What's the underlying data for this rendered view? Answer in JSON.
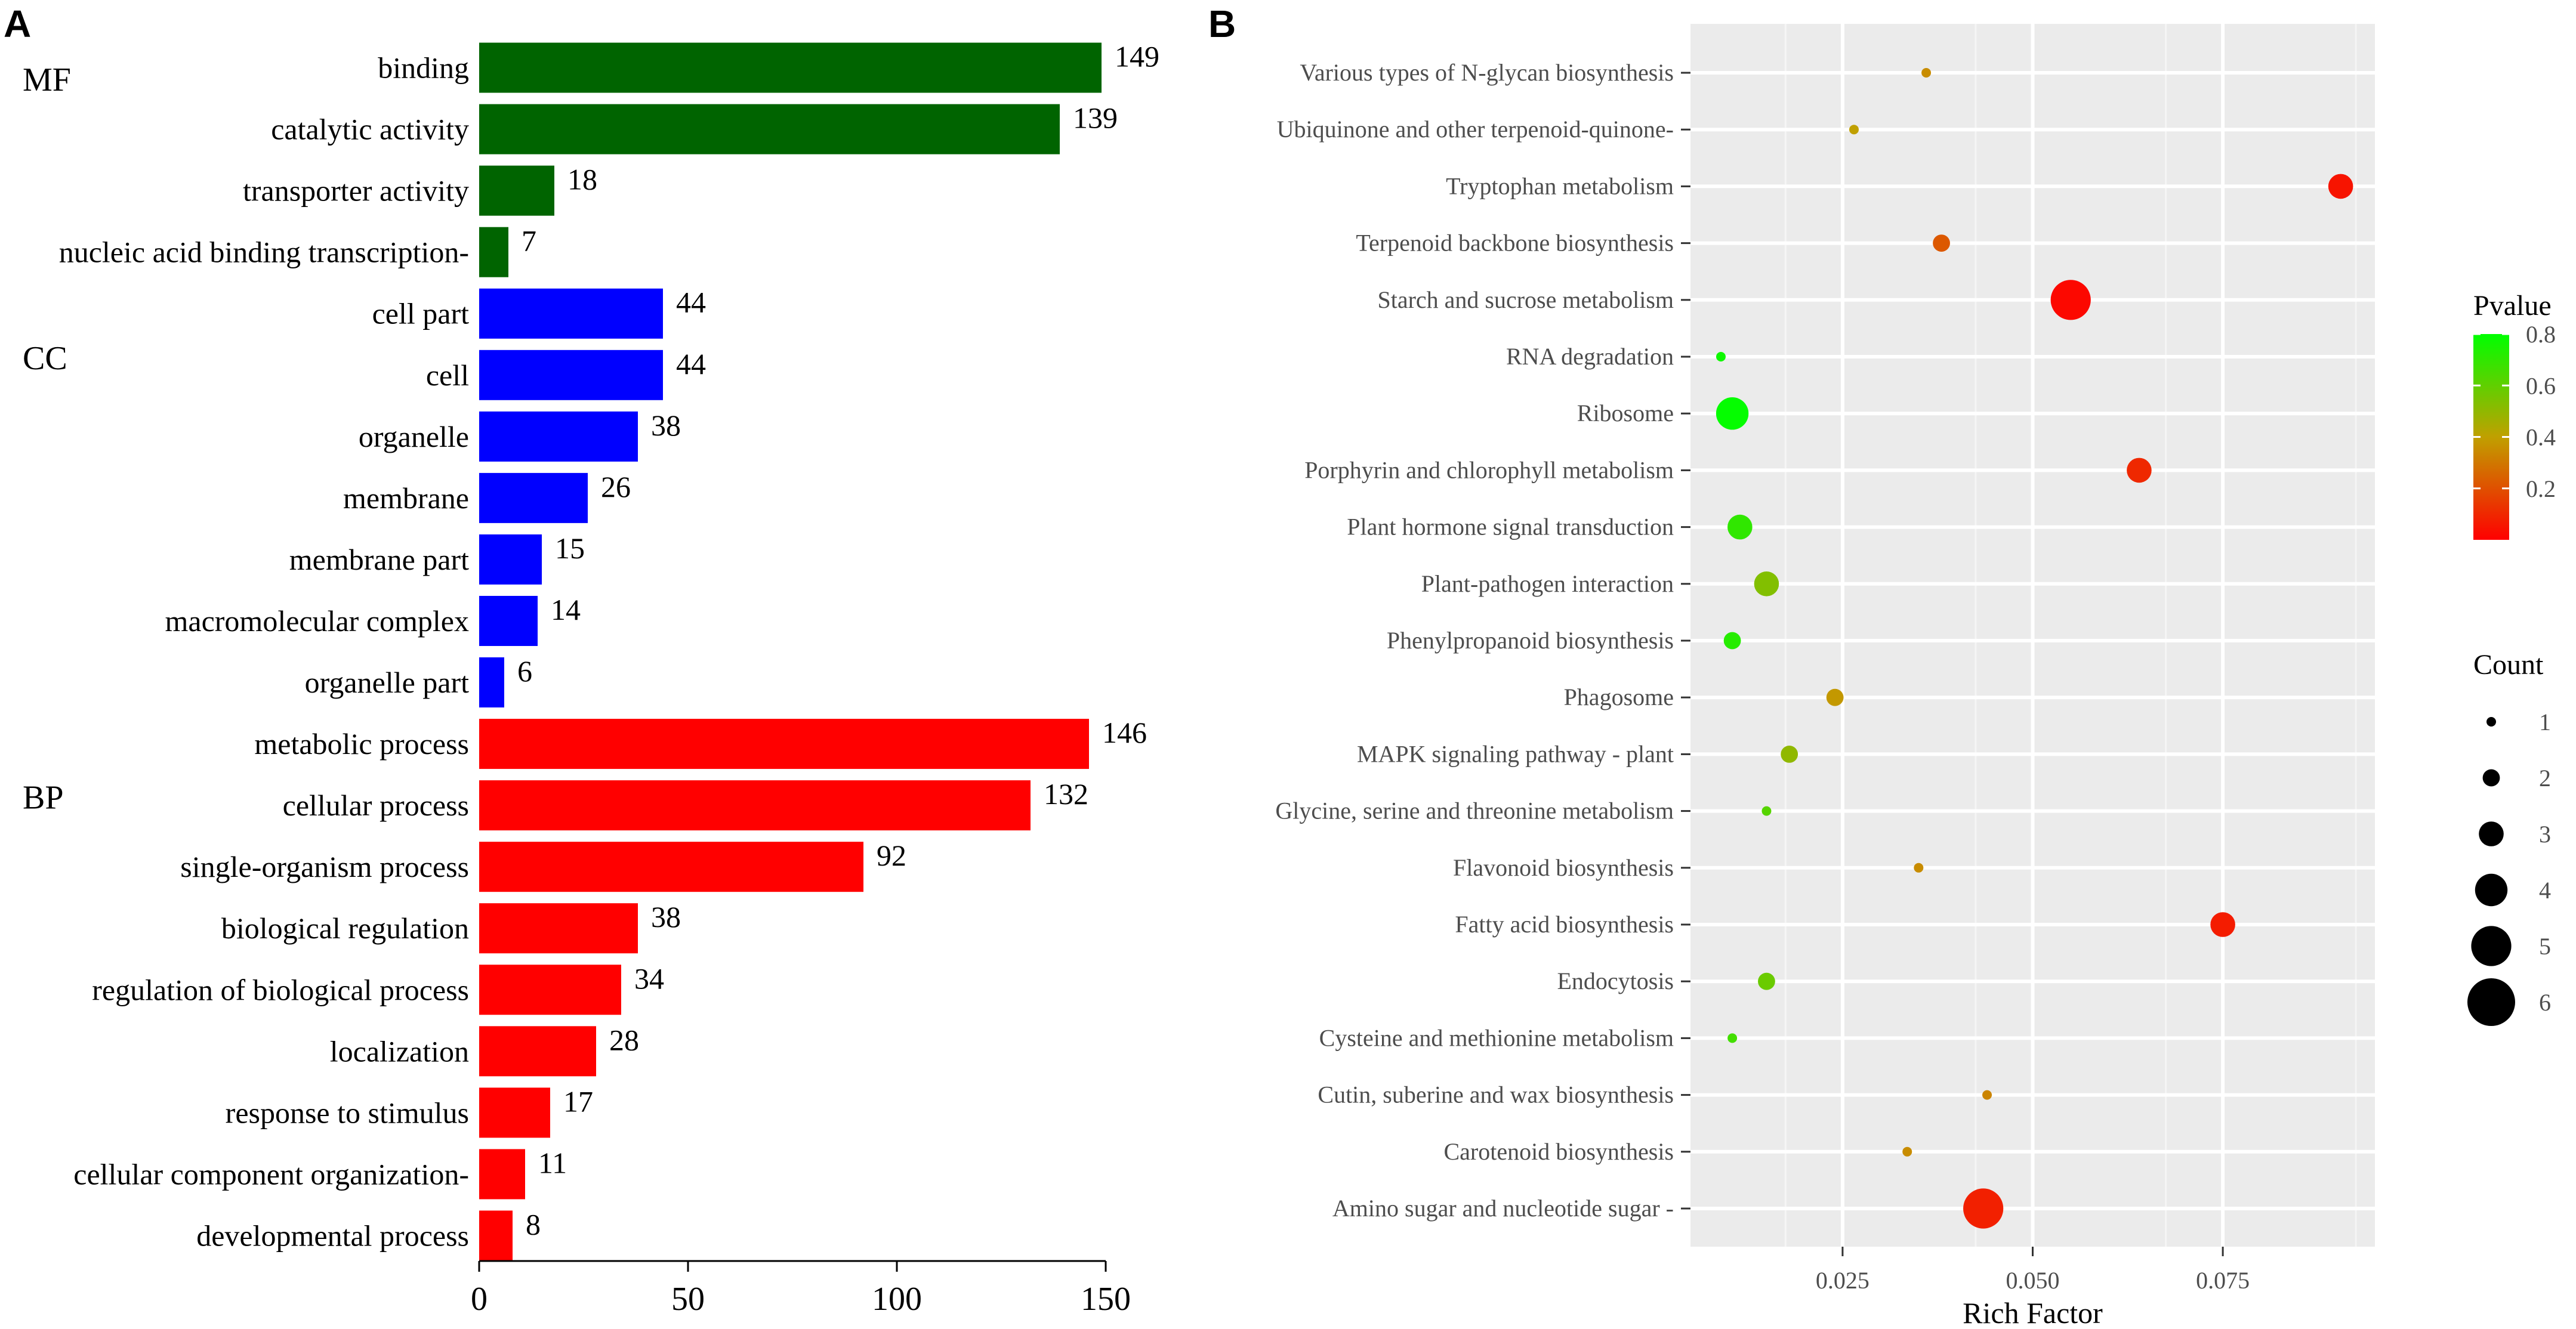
{
  "panel_a": {
    "letter": "A"
  },
  "panel_b": {
    "letter": "B"
  },
  "chart_data": [
    {
      "type": "bar",
      "orientation": "horizontal",
      "title": "",
      "xlabel": "",
      "ylabel": "",
      "xlim": [
        0,
        150
      ],
      "xticks": [
        "0",
        "50",
        "100",
        "150"
      ],
      "grid": false,
      "groups": [
        {
          "name": "MF",
          "color": "#006400",
          "categories": [
            "binding",
            "catalytic activity",
            "transporter activity",
            "nucleic acid binding transcription-"
          ],
          "values": [
            149,
            139,
            18,
            7
          ]
        },
        {
          "name": "CC",
          "color": "#0000ff",
          "categories": [
            "cell part",
            "cell",
            "organelle",
            "membrane",
            "membrane part",
            "macromolecular complex",
            "organelle part"
          ],
          "values": [
            44,
            44,
            38,
            26,
            15,
            14,
            6
          ]
        },
        {
          "name": "BP",
          "color": "#ff0000",
          "categories": [
            "metabolic process",
            "cellular process",
            "single-organism process",
            "biological regulation",
            "regulation of biological process",
            "localization",
            "response to stimulus",
            "cellular component organization-",
            "developmental process"
          ],
          "values": [
            146,
            132,
            92,
            38,
            34,
            28,
            17,
            11,
            8
          ]
        }
      ]
    },
    {
      "type": "scatter",
      "title": "",
      "xlabel": "Rich Factor",
      "ylabel": "",
      "xlim": [
        0.005,
        0.095
      ],
      "xticks": [
        0.025,
        0.05,
        0.075
      ],
      "xtick_labels": [
        "0.025",
        "0.050",
        "0.075"
      ],
      "grid": true,
      "legend_position": "right",
      "color_legend": {
        "title": "Pvalue",
        "range": [
          0.0,
          0.8
        ],
        "ticks": [
          "0.2",
          "0.4",
          "0.6",
          "0.8"
        ],
        "low_color": "#ff0000",
        "high_color": "#00ff00"
      },
      "size_legend": {
        "title": "Count",
        "levels": [
          "1",
          "2",
          "3",
          "4",
          "5",
          "6"
        ]
      },
      "points": [
        {
          "pathway": "Various types of N-glycan biosynthesis",
          "rich_factor": 0.036,
          "count": 1,
          "pvalue": 0.35
        },
        {
          "pathway": "Ubiquinone and other terpenoid-quinone-",
          "rich_factor": 0.0265,
          "count": 1,
          "pvalue": 0.4
        },
        {
          "pathway": "Tryptophan metabolism",
          "rich_factor": 0.0905,
          "count": 3,
          "pvalue": 0.05
        },
        {
          "pathway": "Terpenoid backbone biosynthesis",
          "rich_factor": 0.038,
          "count": 2,
          "pvalue": 0.22
        },
        {
          "pathway": "Starch and sucrose metabolism",
          "rich_factor": 0.055,
          "count": 5,
          "pvalue": 0.02
        },
        {
          "pathway": "RNA degradation",
          "rich_factor": 0.009,
          "count": 1,
          "pvalue": 0.77
        },
        {
          "pathway": "Ribosome",
          "rich_factor": 0.0105,
          "count": 4,
          "pvalue": 0.79
        },
        {
          "pathway": "Porphyrin and chlorophyll metabolism",
          "rich_factor": 0.064,
          "count": 3,
          "pvalue": 0.1
        },
        {
          "pathway": "Plant hormone signal transduction",
          "rich_factor": 0.0115,
          "count": 3,
          "pvalue": 0.7
        },
        {
          "pathway": "Plant-pathogen interaction",
          "rich_factor": 0.015,
          "count": 3,
          "pvalue": 0.53
        },
        {
          "pathway": "Phenylpropanoid biosynthesis",
          "rich_factor": 0.0105,
          "count": 2,
          "pvalue": 0.72
        },
        {
          "pathway": "Phagosome",
          "rich_factor": 0.024,
          "count": 2,
          "pvalue": 0.38
        },
        {
          "pathway": "MAPK signaling pathway - plant",
          "rich_factor": 0.018,
          "count": 2,
          "pvalue": 0.5
        },
        {
          "pathway": "Glycine, serine and threonine metabolism",
          "rich_factor": 0.015,
          "count": 1,
          "pvalue": 0.62
        },
        {
          "pathway": "Flavonoid biosynthesis",
          "rich_factor": 0.035,
          "count": 1,
          "pvalue": 0.35
        },
        {
          "pathway": "Fatty acid biosynthesis",
          "rich_factor": 0.075,
          "count": 3,
          "pvalue": 0.07
        },
        {
          "pathway": "Endocytosis",
          "rich_factor": 0.015,
          "count": 2,
          "pvalue": 0.58
        },
        {
          "pathway": "Cysteine and methionine metabolism",
          "rich_factor": 0.0105,
          "count": 1,
          "pvalue": 0.66
        },
        {
          "pathway": "Cutin, suberine and wax biosynthesis",
          "rich_factor": 0.044,
          "count": 1,
          "pvalue": 0.33
        },
        {
          "pathway": "Carotenoid biosynthesis",
          "rich_factor": 0.0335,
          "count": 1,
          "pvalue": 0.35
        },
        {
          "pathway": "Amino sugar and nucleotide sugar -",
          "rich_factor": 0.0435,
          "count": 5,
          "pvalue": 0.08
        }
      ]
    }
  ]
}
